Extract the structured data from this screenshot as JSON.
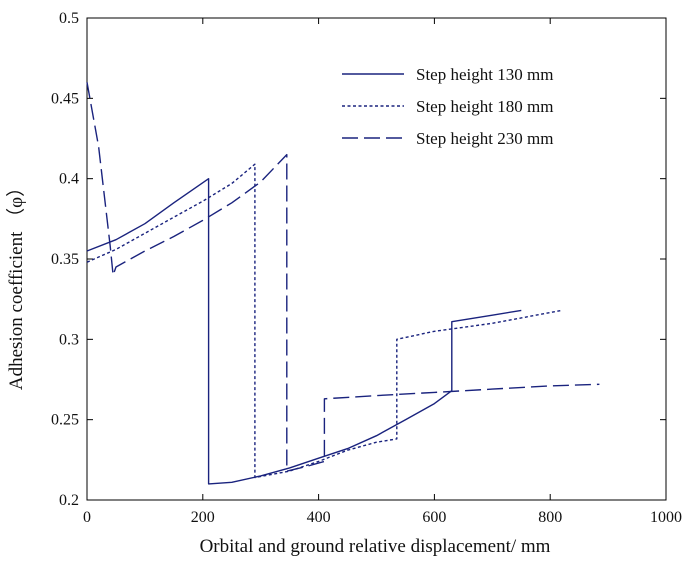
{
  "chart_data": {
    "type": "line",
    "title": "",
    "xlabel": "Orbital and ground relative displacement/ mm",
    "ylabel": "Adhesion coefficient （φ）",
    "xlim": [
      0,
      1000
    ],
    "ylim": [
      0.2,
      0.5
    ],
    "x_ticks": [
      0,
      200,
      400,
      600,
      800,
      1000
    ],
    "y_ticks": [
      0.2,
      0.25,
      0.3,
      0.35,
      0.4,
      0.45,
      0.5
    ],
    "x_tick_labels": [
      "0",
      "200",
      "400",
      "600",
      "800",
      "1000"
    ],
    "y_tick_labels": [
      "0.2",
      "0.25",
      "0.3",
      "0.35",
      "0.4",
      "0.45",
      "0.5"
    ],
    "grid": false,
    "legend_position": "top-right",
    "series": [
      {
        "name": "Step height 130 mm",
        "style": "solid",
        "color": "#1a237e",
        "points": [
          [
            0,
            0.355
          ],
          [
            50,
            0.362
          ],
          [
            100,
            0.372
          ],
          [
            150,
            0.385
          ],
          [
            210,
            0.4
          ],
          [
            210,
            0.21
          ],
          [
            250,
            0.211
          ],
          [
            300,
            0.215
          ],
          [
            350,
            0.22
          ],
          [
            400,
            0.226
          ],
          [
            450,
            0.232
          ],
          [
            500,
            0.24
          ],
          [
            550,
            0.25
          ],
          [
            600,
            0.26
          ],
          [
            630,
            0.268
          ],
          [
            630,
            0.311
          ],
          [
            700,
            0.315
          ],
          [
            750,
            0.318
          ]
        ]
      },
      {
        "name": "Step height 180 mm",
        "style": "dotted",
        "color": "#1a237e",
        "points": [
          [
            0,
            0.348
          ],
          [
            50,
            0.356
          ],
          [
            100,
            0.366
          ],
          [
            150,
            0.376
          ],
          [
            200,
            0.386
          ],
          [
            250,
            0.397
          ],
          [
            290,
            0.409
          ],
          [
            290,
            0.214
          ],
          [
            350,
            0.218
          ],
          [
            400,
            0.224
          ],
          [
            450,
            0.231
          ],
          [
            500,
            0.236
          ],
          [
            535,
            0.238
          ],
          [
            535,
            0.3
          ],
          [
            600,
            0.305
          ],
          [
            700,
            0.31
          ],
          [
            820,
            0.318
          ]
        ]
      },
      {
        "name": "Step height 230 mm",
        "style": "dashed",
        "color": "#1a237e",
        "points": [
          [
            0,
            0.46
          ],
          [
            20,
            0.42
          ],
          [
            40,
            0.358
          ],
          [
            45,
            0.34
          ],
          [
            50,
            0.345
          ],
          [
            100,
            0.355
          ],
          [
            150,
            0.364
          ],
          [
            200,
            0.374
          ],
          [
            250,
            0.385
          ],
          [
            300,
            0.398
          ],
          [
            345,
            0.415
          ],
          [
            345,
            0.218
          ],
          [
            380,
            0.221
          ],
          [
            410,
            0.224
          ],
          [
            410,
            0.263
          ],
          [
            500,
            0.265
          ],
          [
            600,
            0.267
          ],
          [
            700,
            0.269
          ],
          [
            800,
            0.271
          ],
          [
            885,
            0.272
          ]
        ]
      }
    ]
  }
}
